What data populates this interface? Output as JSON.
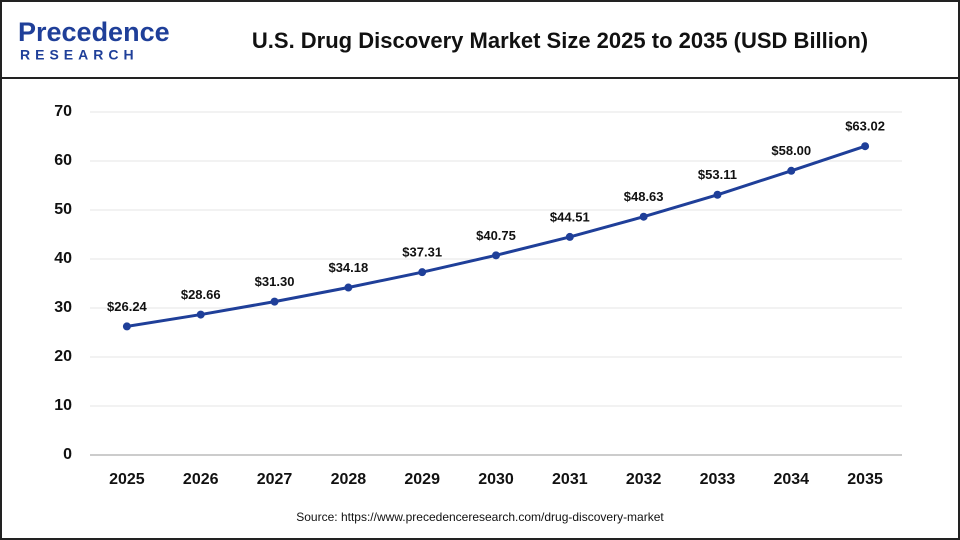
{
  "brand": {
    "name": "Precedence",
    "tagline": "RESEARCH"
  },
  "chart_data": {
    "type": "line",
    "title": "U.S. Drug Discovery Market Size 2025 to 2035 (USD Billion)",
    "categories": [
      "2025",
      "2026",
      "2027",
      "2028",
      "2029",
      "2030",
      "2031",
      "2032",
      "2033",
      "2034",
      "2035"
    ],
    "values": [
      26.24,
      28.66,
      31.3,
      34.18,
      37.31,
      40.75,
      44.51,
      48.63,
      53.11,
      58.0,
      63.02
    ],
    "value_labels": [
      "$26.24",
      "$28.66",
      "$31.30",
      "$34.18",
      "$37.31",
      "$40.75",
      "$44.51",
      "$48.63",
      "$53.11",
      "$58.00",
      "$63.02"
    ],
    "color": "#1f3f99",
    "ylim": [
      0,
      70
    ],
    "yticks": [
      0,
      10,
      20,
      30,
      40,
      50,
      60,
      70
    ],
    "grid": true,
    "source": "Source: https://www.precedenceresearch.com/drug-discovery-market"
  }
}
